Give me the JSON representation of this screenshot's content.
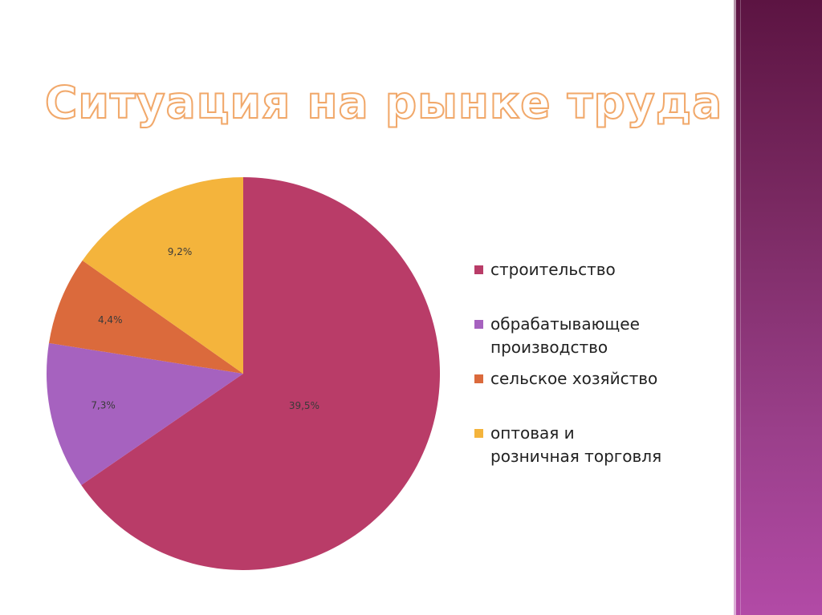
{
  "slide": {
    "title": "Ситуация на рынке труда"
  },
  "chart_data": {
    "type": "pie",
    "title": "",
    "labels": [
      "строительство",
      "обрабатывающее производство",
      "сельское хозяйство",
      "оптовая и розничная торговля"
    ],
    "values": [
      39.5,
      7.3,
      4.4,
      9.2
    ],
    "data_labels": [
      "39,5%",
      "7,3%",
      "4,4%",
      "9,2%"
    ],
    "colors": [
      "#b93c68",
      "#a662bf",
      "#db6a3c",
      "#f4b43c"
    ],
    "start": "12 o'clock",
    "direction": "clockwise",
    "legend_position": "right"
  },
  "legend": {
    "lines": [
      [
        "строительство"
      ],
      [
        "обрабатывающее",
        "производство"
      ],
      [
        "сельское хозяйство"
      ],
      [
        "оптовая и",
        "розничная торговля"
      ]
    ]
  }
}
